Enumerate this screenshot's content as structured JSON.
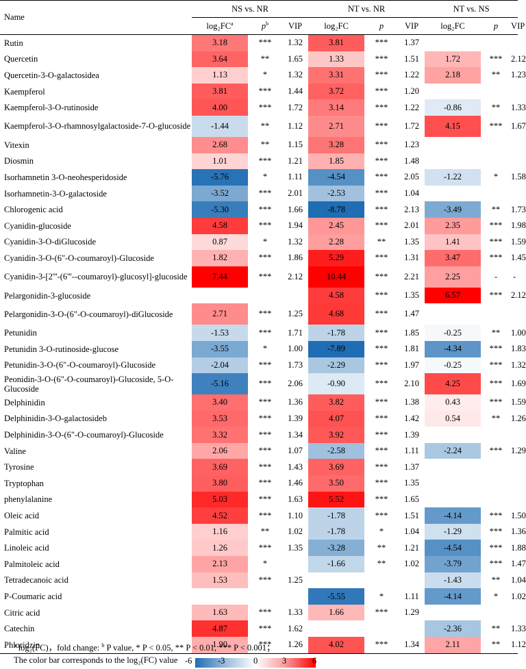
{
  "header": {
    "name": "Name",
    "groups": [
      "NS vs. NR",
      "NT vs. NR",
      "NT vs. NS"
    ],
    "sub": [
      {
        "fc": "log₂FC",
        "fc_sup": "a",
        "p": "p",
        "p_sup": "b",
        "vip": "VIP"
      },
      {
        "fc": "log₂FC",
        "fc_sup": "",
        "p": "p",
        "p_sup": "",
        "vip": "VIP"
      },
      {
        "fc": "log₂FC",
        "fc_sup": "",
        "p": "p",
        "p_sup": "",
        "vip": "VIP"
      }
    ]
  },
  "rows": [
    {
      "name": "Rutin",
      "c": [
        [
          "3.18",
          "***",
          "1.32"
        ],
        [
          "3.81",
          "***",
          "1.37"
        ],
        [
          "",
          "",
          ""
        ]
      ]
    },
    {
      "name": "Quercetin",
      "c": [
        [
          "3.64",
          "**",
          "1.65"
        ],
        [
          "1.33",
          "***",
          "1.51"
        ],
        [
          "1.72",
          "***",
          "2.12"
        ]
      ]
    },
    {
      "name": "Quercetin-3-O-galactosidea",
      "c": [
        [
          "1.13",
          "*",
          "1.32"
        ],
        [
          "3.31",
          "***",
          "1.22"
        ],
        [
          "2.18",
          "**",
          "1.23"
        ]
      ]
    },
    {
      "name": "Kaempferol",
      "c": [
        [
          "3.81",
          "***",
          "1.44"
        ],
        [
          "3.72",
          "***",
          "1.20"
        ],
        [
          "",
          "",
          ""
        ]
      ]
    },
    {
      "name": "Kaempferol-3-O-rutinoside",
      "c": [
        [
          "4.00",
          "***",
          "1.72"
        ],
        [
          "3.14",
          "***",
          "1.22"
        ],
        [
          "-0.86",
          "**",
          "1.33"
        ]
      ]
    },
    {
      "name": "Kaempferol-3-O-rhamnosylgalactoside-7-O-glucoside",
      "c": [
        [
          "-1.44",
          "**",
          "1.12"
        ],
        [
          "2.71",
          "***",
          "1.72"
        ],
        [
          "4.15",
          "***",
          "1.67"
        ]
      ]
    },
    {
      "name": "Vitexin",
      "c": [
        [
          "2.68",
          "**",
          "1.15"
        ],
        [
          "3.28",
          "***",
          "1.23"
        ],
        [
          "",
          "",
          ""
        ]
      ]
    },
    {
      "name": "Diosmin",
      "c": [
        [
          "1.01",
          "***",
          "1.21"
        ],
        [
          "1.85",
          "***",
          "1.48"
        ],
        [
          "",
          "",
          ""
        ]
      ]
    },
    {
      "name": "Isorhamnetin 3-O-neohesperidoside",
      "c": [
        [
          "-5.76",
          "*",
          "1.11"
        ],
        [
          "-4.54",
          "***",
          "2.05"
        ],
        [
          "-1.22",
          "*",
          "1.58"
        ]
      ]
    },
    {
      "name": "Isorhamnetin-3-O-galactoside",
      "c": [
        [
          "-3.52",
          "***",
          "2.01"
        ],
        [
          "-2.53",
          "***",
          "1.04"
        ],
        [
          "",
          "",
          ""
        ]
      ]
    },
    {
      "name": "Chlorogenic acid",
      "c": [
        [
          "-5.30",
          "***",
          "1.66"
        ],
        [
          "-8.78",
          "***",
          "2.13"
        ],
        [
          "-3.49",
          "**",
          "1.73"
        ]
      ]
    },
    {
      "name": "Cyanidin-glucoside",
      "c": [
        [
          "4.58",
          "***",
          "1.94"
        ],
        [
          "2.45",
          "***",
          "2.01"
        ],
        [
          "2.35",
          "***",
          "1.98"
        ]
      ]
    },
    {
      "name": "Cyanidin-3-O-diGlucoside",
      "c": [
        [
          "0.87",
          "*",
          "1.32"
        ],
        [
          "2.28",
          "**",
          "1.35"
        ],
        [
          "1.41",
          "***",
          "1.59"
        ]
      ]
    },
    {
      "name": "Cyanidin-3-O-(6\"-O-coumaroyl)-Glucoside",
      "c": [
        [
          "1.82",
          "***",
          "1.86"
        ],
        [
          "5.29",
          "***",
          "1.31"
        ],
        [
          "3.47",
          "***",
          "1.45"
        ]
      ]
    },
    {
      "name": "Cyanidin-3-[2'''-(6'''--coumaroyl)-glucosyl]-glucoside",
      "c": [
        [
          "7.44",
          "***",
          "2.12"
        ],
        [
          "10.44",
          "***",
          "2.21"
        ],
        [
          "2.25",
          "-",
          "-"
        ]
      ]
    },
    {
      "name": "Pelargonidin-3-glucoside",
      "c": [
        [
          "",
          "",
          ""
        ],
        [
          "4.58",
          "***",
          "1.35"
        ],
        [
          "6.57",
          "***",
          "2.12"
        ]
      ]
    },
    {
      "name": "Pelargonidin-3-O-(6\"-O-coumaroyl)-diGlucoside",
      "c": [
        [
          "2.71",
          "***",
          "1.25"
        ],
        [
          "4.68",
          "***",
          "1.47"
        ],
        [
          "",
          "",
          ""
        ]
      ]
    },
    {
      "name": "Petunidin",
      "c": [
        [
          "-1.53",
          "***",
          "1.71"
        ],
        [
          "-1.78",
          "***",
          "1.85"
        ],
        [
          "-0.25",
          "**",
          "1.00"
        ]
      ]
    },
    {
      "name": "Petunidin 3-O-rutinoside-glucose",
      "c": [
        [
          "-3.55",
          "*",
          "1.00"
        ],
        [
          "-7.89",
          "***",
          "1.81"
        ],
        [
          "-4.34",
          "***",
          "1.83"
        ]
      ]
    },
    {
      "name": "Petunidin-3-O-(6\"-O-coumaroyl)-Glucoside",
      "c": [
        [
          "-2.04",
          "***",
          "1.73"
        ],
        [
          "-2.29",
          "***",
          "1.97"
        ],
        [
          "-0.25",
          "***",
          "1.32"
        ]
      ]
    },
    {
      "name": "Peonidin-3-O-(6\"-O-coumaroyl)-Glucoside, 5-O-Glucoside",
      "c": [
        [
          "-5.16",
          "***",
          "2.06"
        ],
        [
          "-0.90",
          "***",
          "2.10"
        ],
        [
          "4.25",
          "***",
          "1.69"
        ]
      ]
    },
    {
      "name": "Delphinidin",
      "c": [
        [
          "3.40",
          "***",
          "1.36"
        ],
        [
          "3.82",
          "***",
          "1.38"
        ],
        [
          "0.43",
          "***",
          "1.59"
        ]
      ]
    },
    {
      "name": "Delphinidin-3-O-galactosideb",
      "c": [
        [
          "3.53",
          "***",
          "1.39"
        ],
        [
          "4.07",
          "***",
          "1.42"
        ],
        [
          "0.54",
          "**",
          "1.26"
        ]
      ]
    },
    {
      "name": "Delphinidin-3-O-(6\"-O-coumaroyl)-Glucoside",
      "c": [
        [
          "3.32",
          "***",
          "1.34"
        ],
        [
          "3.92",
          "***",
          "1.39"
        ],
        [
          "",
          "",
          ""
        ]
      ]
    },
    {
      "name": "Valine",
      "c": [
        [
          "2.06",
          "***",
          "1.07"
        ],
        [
          "-2.58",
          "***",
          "1.11"
        ],
        [
          "-2.24",
          "***",
          "1.29"
        ]
      ]
    },
    {
      "name": "Tyrosine",
      "c": [
        [
          "3.69",
          "***",
          "1.43"
        ],
        [
          "3.69",
          "***",
          "1.37"
        ],
        [
          "",
          "",
          ""
        ]
      ]
    },
    {
      "name": "Tryptophan",
      "c": [
        [
          "3.80",
          "***",
          "1.46"
        ],
        [
          "3.50",
          "***",
          "1.35"
        ],
        [
          "",
          "",
          ""
        ]
      ]
    },
    {
      "name": "phenylalanine",
      "c": [
        [
          "5.03",
          "***",
          "1.63"
        ],
        [
          "5.52",
          "***",
          "1.65"
        ],
        [
          "",
          "",
          ""
        ]
      ]
    },
    {
      "name": "Oleic acid",
      "c": [
        [
          "4.52",
          "***",
          "1.10"
        ],
        [
          "-1.78",
          "***",
          "1.51"
        ],
        [
          "-4.14",
          "***",
          "1.50"
        ]
      ]
    },
    {
      "name": "Palmitic acid",
      "c": [
        [
          "1.16",
          "**",
          "1.02"
        ],
        [
          "-1.78",
          "*",
          "1.04"
        ],
        [
          "-1.29",
          "***",
          "1.36"
        ]
      ]
    },
    {
      "name": "Linoleic acid",
      "c": [
        [
          "1.26",
          "***",
          "1.35"
        ],
        [
          "-3.28",
          "**",
          "1.21"
        ],
        [
          "-4.54",
          "***",
          "1.88"
        ]
      ]
    },
    {
      "name": "Palmitoleic acid",
      "c": [
        [
          "2.13",
          "*",
          ""
        ],
        [
          "-1.66",
          "**",
          "1.02"
        ],
        [
          "-3.79",
          "***",
          "1.47"
        ]
      ]
    },
    {
      "name": "Tetradecanoic acid",
      "c": [
        [
          "1.53",
          "***",
          "1.25"
        ],
        [
          "",
          "",
          ""
        ],
        [
          "-1.43",
          "**",
          "1.04"
        ]
      ]
    },
    {
      "name": "P-Coumaric acid",
      "c": [
        [
          "",
          "",
          ""
        ],
        [
          "-5.55",
          "*",
          "1.11"
        ],
        [
          "-4.14",
          "*",
          "1.02"
        ]
      ]
    },
    {
      "name": "Citric acid",
      "c": [
        [
          "1.63",
          "***",
          "1.33"
        ],
        [
          "1.66",
          "***",
          "1.29"
        ],
        [
          "",
          "",
          ""
        ]
      ]
    },
    {
      "name": "Catechin",
      "c": [
        [
          "4.87",
          "***",
          "1.62"
        ],
        [
          "",
          "",
          ""
        ],
        [
          "-2.36",
          "**",
          "1.33"
        ]
      ]
    },
    {
      "name": "Phloridzin",
      "c": [
        [
          "1.90",
          "***",
          "1.26"
        ],
        [
          "4.02",
          "***",
          "1.34"
        ],
        [
          "2.11",
          "**",
          "1.12"
        ]
      ]
    }
  ],
  "footnote": {
    "a": "a",
    "line1": "log₂(FC)，fold change: ",
    "b": "b",
    "line1b": "P value,   * P < 0.05,   ** P < 0.01,   *** P < 0.001；",
    "line2": "The color bar corresponds to the log₂(FC) value",
    "ticks": [
      "-6",
      "-3",
      "0",
      "3",
      "6"
    ]
  },
  "colors": {
    "neg": "#1f6db3",
    "mid": "#ffffff",
    "pos": "#ff0000"
  }
}
